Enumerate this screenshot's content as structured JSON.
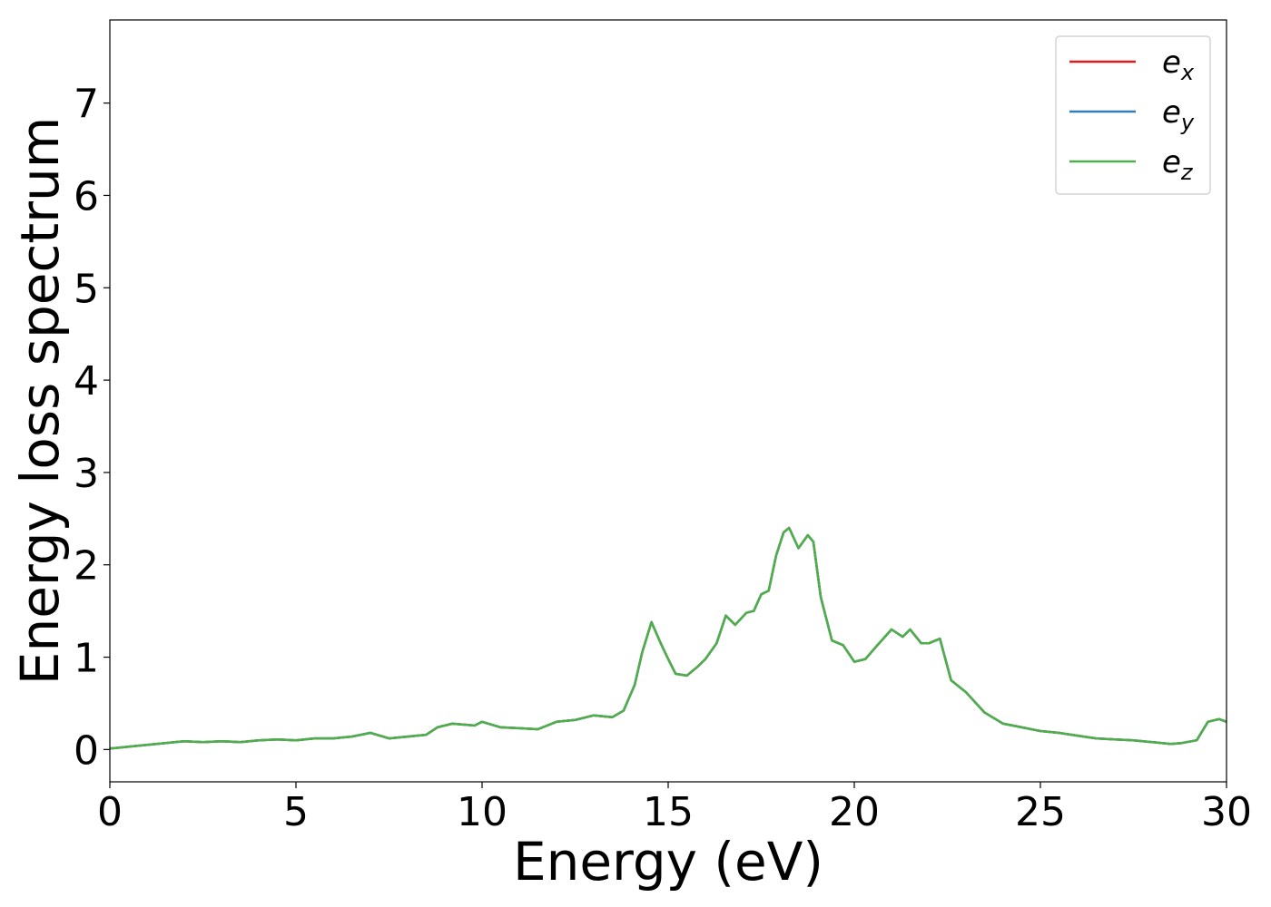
{
  "chart_data": {
    "type": "line",
    "xlabel": "Energy (eV)",
    "ylabel": "Energy loss spectrum",
    "xlim": [
      0,
      30
    ],
    "ylim": [
      -0.35,
      7.9
    ],
    "xticks": [
      0,
      5,
      10,
      15,
      20,
      25,
      30
    ],
    "yticks": [
      0,
      1,
      2,
      3,
      4,
      5,
      6,
      7
    ],
    "grid": false,
    "legend_position": "top-right",
    "series": [
      {
        "name": "e",
        "subscript": "x",
        "color": "#e41a1c"
      },
      {
        "name": "e",
        "subscript": "y",
        "color": "#377eb8"
      },
      {
        "name": "e",
        "subscript": "z",
        "color": "#4daf4a"
      }
    ],
    "x": [
      0,
      0.5,
      1,
      1.5,
      2,
      2.5,
      3,
      3.5,
      4,
      4.5,
      5,
      5.5,
      6,
      6.5,
      7,
      7.5,
      8,
      8.5,
      8.8,
      9.2,
      9.5,
      9.8,
      10,
      10.5,
      11,
      11.5,
      12,
      12.5,
      13,
      13.5,
      13.8,
      14.1,
      14.3,
      14.55,
      14.8,
      15,
      15.2,
      15.5,
      15.8,
      16,
      16.3,
      16.55,
      16.8,
      17.1,
      17.3,
      17.5,
      17.7,
      17.9,
      18.1,
      18.25,
      18.5,
      18.75,
      18.9,
      19.1,
      19.4,
      19.7,
      20,
      20.3,
      20.6,
      21,
      21.3,
      21.5,
      21.8,
      22,
      22.3,
      22.6,
      23,
      23.5,
      24,
      24.5,
      25,
      25.5,
      26,
      26.5,
      27,
      27.5,
      28,
      28.5,
      28.8,
      29.2,
      29.5,
      29.8,
      30
    ],
    "values": [
      0.01,
      0.03,
      0.05,
      0.07,
      0.09,
      0.08,
      0.09,
      0.08,
      0.1,
      0.11,
      0.1,
      0.12,
      0.12,
      0.14,
      0.18,
      0.12,
      0.14,
      0.16,
      0.24,
      0.28,
      0.27,
      0.26,
      0.3,
      0.24,
      0.23,
      0.22,
      0.3,
      0.32,
      0.37,
      0.35,
      0.42,
      0.7,
      1.05,
      1.38,
      1.15,
      0.98,
      0.82,
      0.8,
      0.9,
      0.98,
      1.15,
      1.45,
      1.35,
      1.48,
      1.5,
      1.68,
      1.72,
      2.1,
      2.35,
      2.4,
      2.18,
      2.32,
      2.25,
      1.65,
      1.18,
      1.13,
      0.95,
      0.98,
      1.12,
      1.3,
      1.22,
      1.3,
      1.15,
      1.15,
      1.2,
      0.75,
      0.62,
      0.4,
      0.28,
      0.24,
      0.2,
      0.18,
      0.15,
      0.12,
      0.11,
      0.1,
      0.08,
      0.06,
      0.07,
      0.1,
      0.3,
      0.33,
      0.3
    ]
  }
}
